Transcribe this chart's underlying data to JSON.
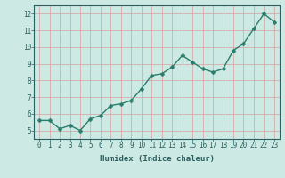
{
  "x": [
    0,
    1,
    2,
    3,
    4,
    5,
    6,
    7,
    8,
    9,
    10,
    11,
    12,
    13,
    14,
    15,
    16,
    17,
    18,
    19,
    20,
    21,
    22,
    23
  ],
  "y": [
    5.6,
    5.6,
    5.1,
    5.3,
    5.0,
    5.7,
    5.9,
    6.5,
    6.6,
    6.8,
    7.5,
    8.3,
    8.4,
    8.8,
    9.5,
    9.1,
    8.7,
    8.5,
    8.7,
    9.8,
    10.2,
    11.1,
    12.0,
    11.5
  ],
  "line_color": "#2a7d6b",
  "marker": "D",
  "marker_size": 2.5,
  "line_width": 1.0,
  "background_color": "#cce9e4",
  "grid_color": "#d4a0a0",
  "xlabel": "Humidex (Indice chaleur)",
  "xlim": [
    -0.5,
    23.5
  ],
  "ylim": [
    4.5,
    12.5
  ],
  "yticks": [
    5,
    6,
    7,
    8,
    9,
    10,
    11,
    12
  ],
  "xticks": [
    0,
    1,
    2,
    3,
    4,
    5,
    6,
    7,
    8,
    9,
    10,
    11,
    12,
    13,
    14,
    15,
    16,
    17,
    18,
    19,
    20,
    21,
    22,
    23
  ],
  "label_color": "#2a6060",
  "spine_color": "#2a6060",
  "font_size_label": 6.5,
  "font_size_tick": 5.5
}
